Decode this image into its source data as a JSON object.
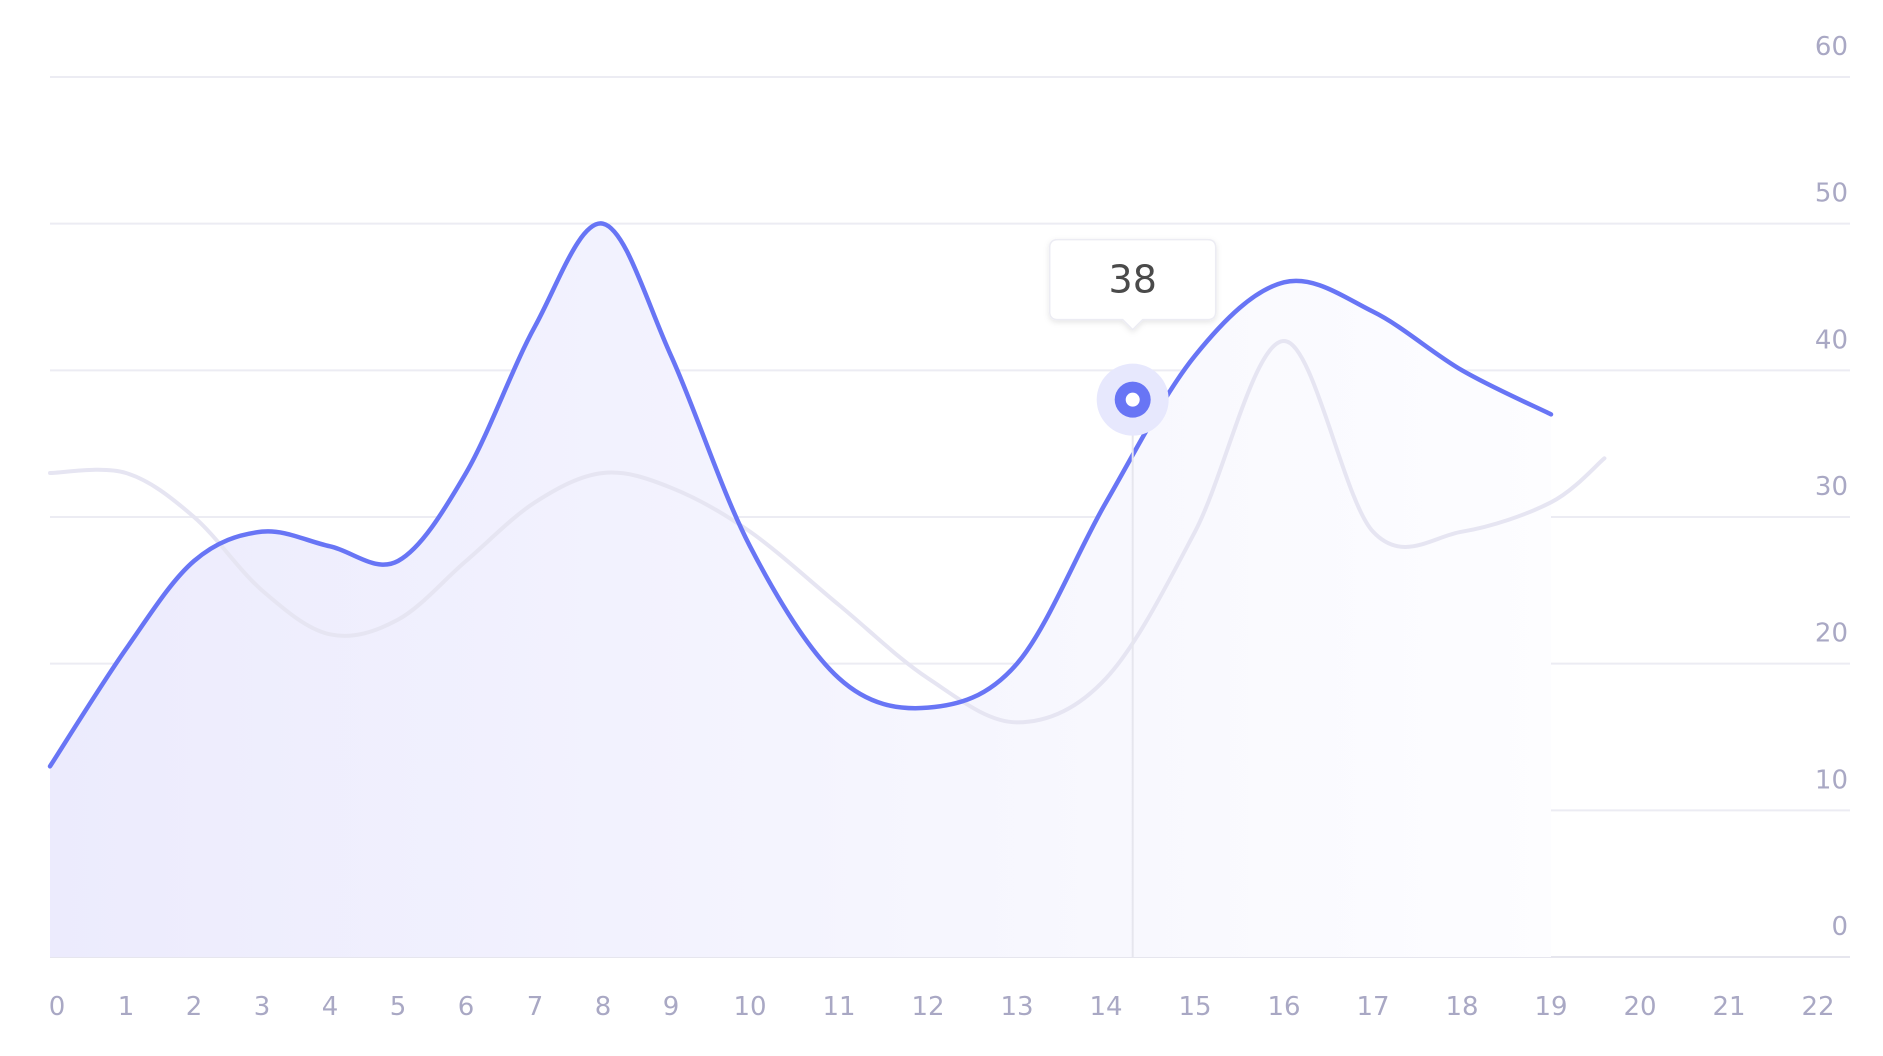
{
  "chart_data": {
    "type": "line",
    "x": [
      0,
      1,
      2,
      3,
      4,
      5,
      6,
      7,
      8,
      9,
      10,
      11,
      12,
      13,
      14,
      15,
      16,
      17,
      18,
      19
    ],
    "x_ticks": [
      0,
      1,
      2,
      3,
      4,
      5,
      6,
      7,
      8,
      9,
      10,
      11,
      12,
      13,
      14,
      15,
      16,
      17,
      18,
      19,
      20,
      21,
      22
    ],
    "y_ticks": [
      0,
      10,
      20,
      30,
      40,
      50,
      60
    ],
    "xlim": [
      0,
      22
    ],
    "ylim": [
      0,
      60
    ],
    "y_axis_position": "right",
    "grid": "horizontal",
    "legend": "none",
    "series": [
      {
        "values": [
          13,
          21,
          27,
          29,
          28,
          27,
          33,
          43,
          50,
          41,
          28,
          19,
          17,
          20,
          31,
          41,
          46,
          44,
          40,
          37
        ],
        "color": "#6875f5",
        "fill": true,
        "emphasis": "primary"
      },
      {
        "values": [
          33,
          33,
          30,
          25,
          22,
          23,
          27,
          31,
          33,
          32,
          29,
          24,
          19,
          16,
          19,
          29,
          42,
          29,
          29,
          31,
          34
        ],
        "x": [
          0,
          1,
          2,
          3,
          4,
          5,
          6,
          7,
          8,
          9,
          10,
          11,
          12,
          13,
          14,
          15,
          16,
          17,
          18,
          19,
          19.6
        ],
        "color": "#e6e5f2",
        "fill": false,
        "emphasis": "secondary"
      }
    ],
    "tooltip": {
      "x": 14.3,
      "value": 38,
      "label": "38"
    }
  }
}
